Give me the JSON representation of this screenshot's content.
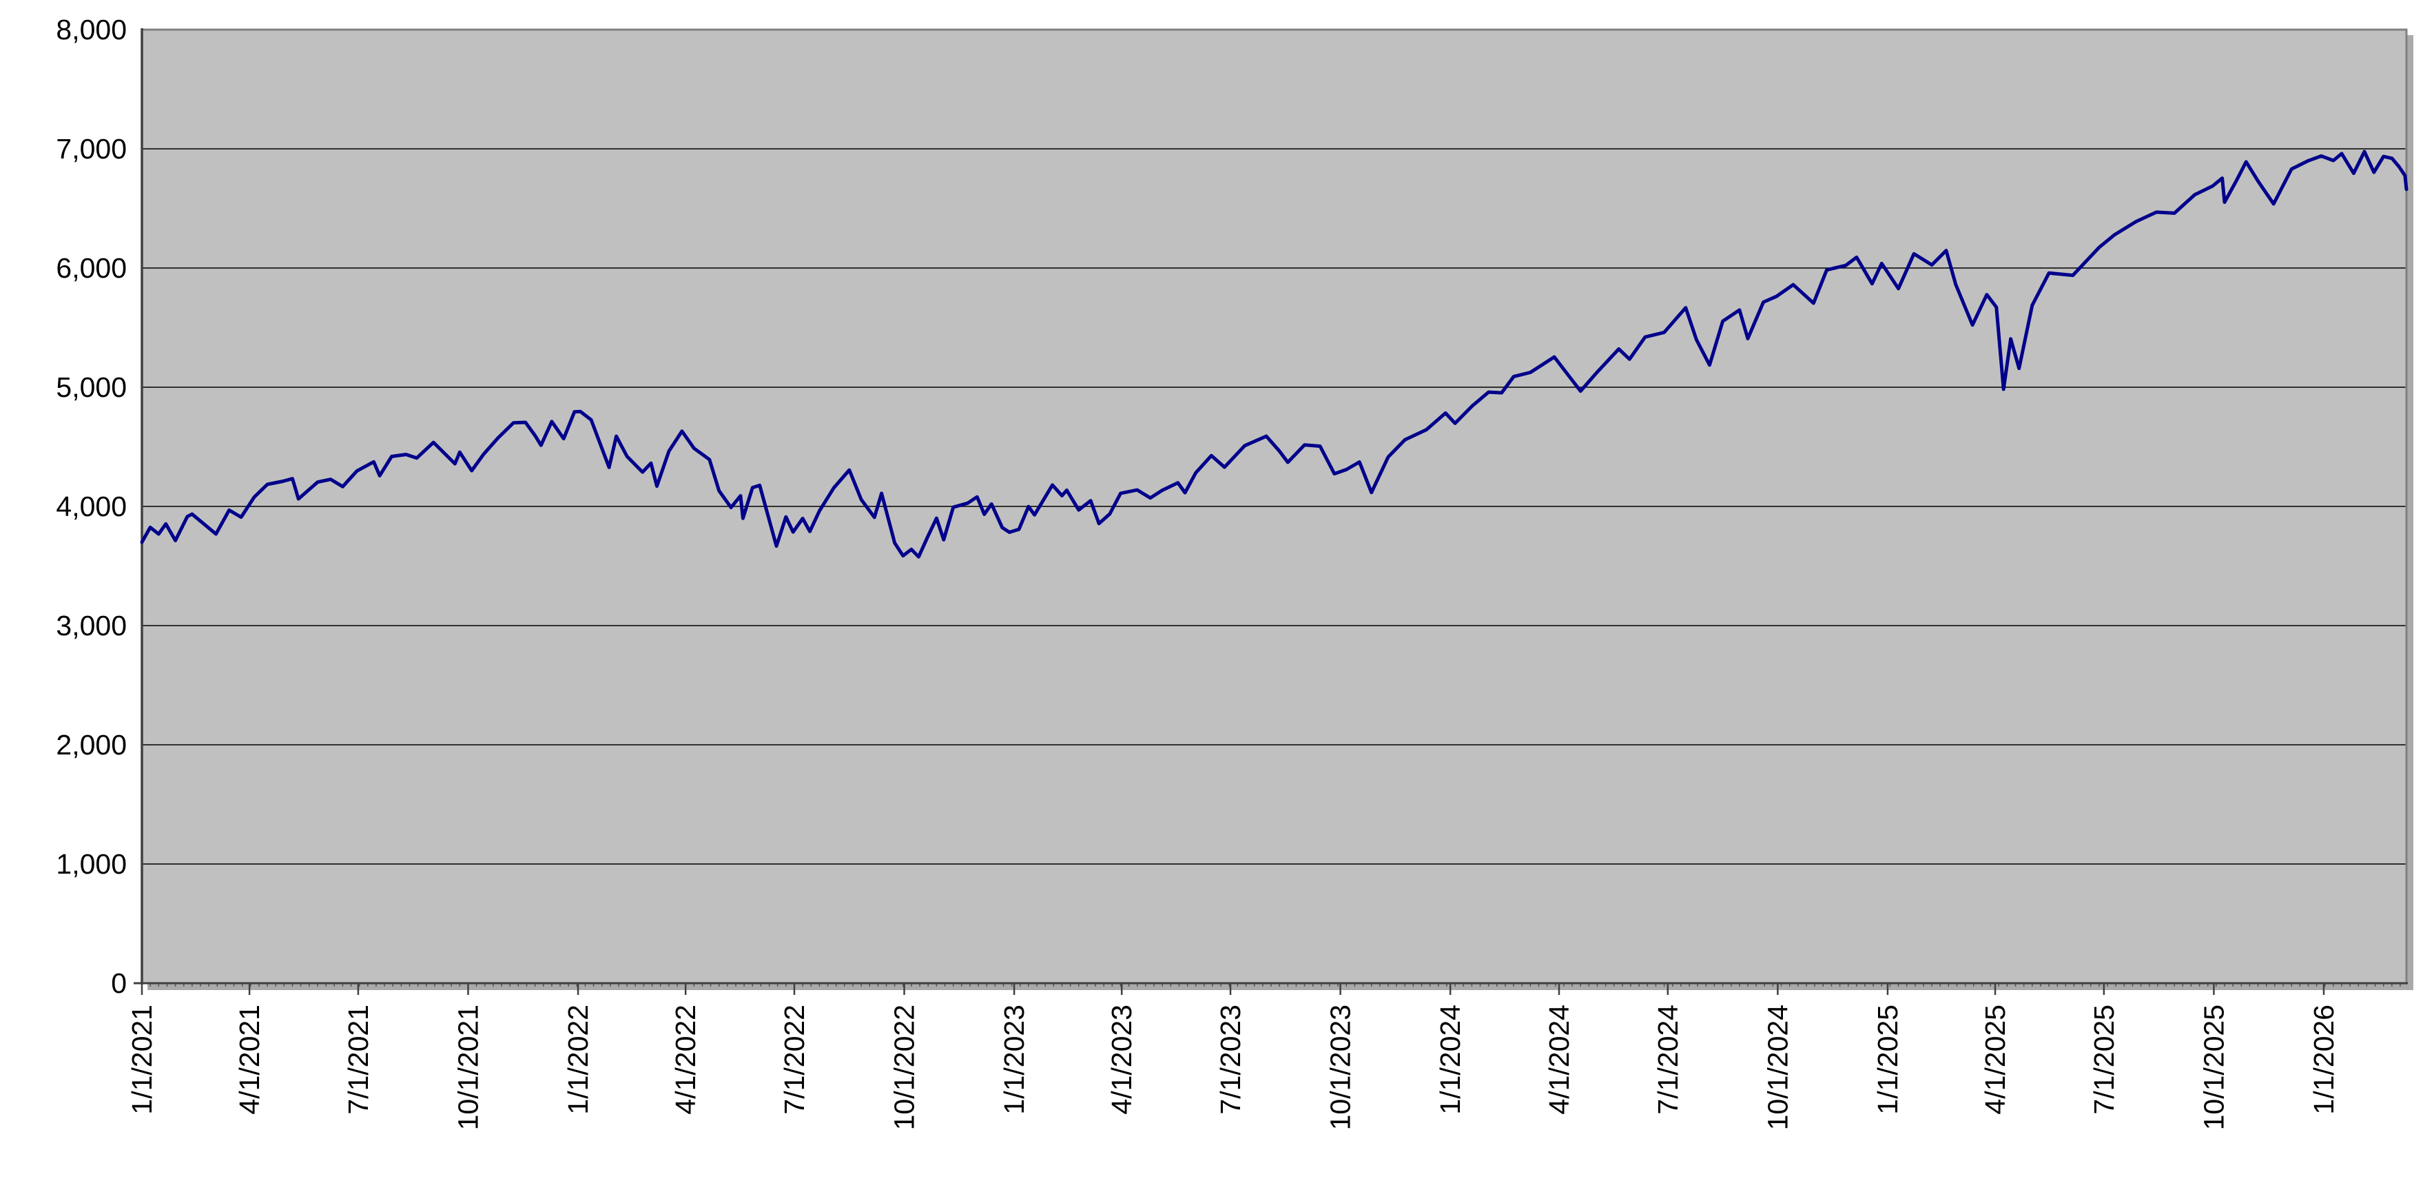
{
  "chart_data": {
    "type": "line",
    "title": "",
    "xlabel": "",
    "ylabel": "",
    "legend": false,
    "grid": true,
    "ylim": [
      0,
      8000
    ],
    "y_ticks": [
      0,
      1000,
      2000,
      3000,
      4000,
      5000,
      6000,
      7000,
      8000
    ],
    "y_tick_labels": [
      "0",
      "1,000",
      "2,000",
      "3,000",
      "4,000",
      "5,000",
      "6,000",
      "7,000",
      "8,000"
    ],
    "x_tick_labels": [
      "1/1/2021",
      "4/1/2021",
      "7/1/2021",
      "10/1/2021",
      "1/1/2022",
      "4/1/2022",
      "7/1/2022",
      "10/1/2022",
      "1/1/2023",
      "4/1/2023",
      "7/1/2023",
      "10/1/2023",
      "1/1/2024",
      "4/1/2024",
      "7/1/2024",
      "10/1/2024",
      "1/1/2025",
      "4/1/2025",
      "7/1/2025",
      "10/1/2025",
      "1/1/2026"
    ],
    "x_range": [
      "1/1/2021",
      "3/13/2026"
    ],
    "points": [
      [
        "1/1/2021",
        3700
      ],
      [
        "1/8/2021",
        3824
      ],
      [
        "1/15/2021",
        3768
      ],
      [
        "1/21/2021",
        3853
      ],
      [
        "1/29/2021",
        3714
      ],
      [
        "2/8/2021",
        3915
      ],
      [
        "2/12/2021",
        3935
      ],
      [
        "2/19/2021",
        3877
      ],
      [
        "3/4/2021",
        3768
      ],
      [
        "3/15/2021",
        3969
      ],
      [
        "3/25/2021",
        3910
      ],
      [
        "4/5/2021",
        4078
      ],
      [
        "4/16/2021",
        4185
      ],
      [
        "4/29/2021",
        4211
      ],
      [
        "5/7/2021",
        4233
      ],
      [
        "5/12/2021",
        4063
      ],
      [
        "5/28/2021",
        4204
      ],
      [
        "6/8/2021",
        4227
      ],
      [
        "6/18/2021",
        4166
      ],
      [
        "6/30/2021",
        4298
      ],
      [
        "7/14/2021",
        4374
      ],
      [
        "7/19/2021",
        4258
      ],
      [
        "7/29/2021",
        4419
      ],
      [
        "8/10/2021",
        4436
      ],
      [
        "8/19/2021",
        4406
      ],
      [
        "9/2/2021",
        4537
      ],
      [
        "9/20/2021",
        4358
      ],
      [
        "9/24/2021",
        4455
      ],
      [
        "10/4/2021",
        4300
      ],
      [
        "10/14/2021",
        4438
      ],
      [
        "10/26/2021",
        4574
      ],
      [
        "11/8/2021",
        4702
      ],
      [
        "11/18/2021",
        4705
      ],
      [
        "11/26/2021",
        4595
      ],
      [
        "12/1/2021",
        4513
      ],
      [
        "12/10/2021",
        4712
      ],
      [
        "12/20/2021",
        4568
      ],
      [
        "12/29/2021",
        4793
      ],
      [
        "1/3/2022",
        4796
      ],
      [
        "1/12/2022",
        4726
      ],
      [
        "1/27/2022",
        4327
      ],
      [
        "2/2/2022",
        4589
      ],
      [
        "2/11/2022",
        4419
      ],
      [
        "2/24/2022",
        4288
      ],
      [
        "3/3/2022",
        4363
      ],
      [
        "3/8/2022",
        4170
      ],
      [
        "3/18/2022",
        4463
      ],
      [
        "3/29/2022",
        4631
      ],
      [
        "4/8/2022",
        4488
      ],
      [
        "4/21/2022",
        4393
      ],
      [
        "4/29/2022",
        4131
      ],
      [
        "5/9/2022",
        3991
      ],
      [
        "5/17/2022",
        4089
      ],
      [
        "5/19/2022",
        3900
      ],
      [
        "5/27/2022",
        4158
      ],
      [
        "6/2/2022",
        4177
      ],
      [
        "6/16/2022",
        3667
      ],
      [
        "6/24/2022",
        3912
      ],
      [
        "6/30/2022",
        3785
      ],
      [
        "7/8/2022",
        3899
      ],
      [
        "7/14/2022",
        3790
      ],
      [
        "7/22/2022",
        3962
      ],
      [
        "8/3/2022",
        4155
      ],
      [
        "8/16/2022",
        4305
      ],
      [
        "8/26/2022",
        4058
      ],
      [
        "9/6/2022",
        3908
      ],
      [
        "9/12/2022",
        4110
      ],
      [
        "9/23/2022",
        3693
      ],
      [
        "9/30/2022",
        3586
      ],
      [
        "10/7/2022",
        3640
      ],
      [
        "10/13/2022",
        3577
      ],
      [
        "10/21/2022",
        3753
      ],
      [
        "10/28/2022",
        3901
      ],
      [
        "11/3/2022",
        3720
      ],
      [
        "11/11/2022",
        3993
      ],
      [
        "11/23/2022",
        4027
      ],
      [
        "12/1/2022",
        4080
      ],
      [
        "12/7/2022",
        3934
      ],
      [
        "12/13/2022",
        4020
      ],
      [
        "12/22/2022",
        3822
      ],
      [
        "12/28/2022",
        3783
      ],
      [
        "1/5/2023",
        3808
      ],
      [
        "1/13/2023",
        3999
      ],
      [
        "1/18/2023",
        3929
      ],
      [
        "2/2/2023",
        4180
      ],
      [
        "2/10/2023",
        4090
      ],
      [
        "2/14/2023",
        4136
      ],
      [
        "2/24/2023",
        3970
      ],
      [
        "3/6/2023",
        4048
      ],
      [
        "3/13/2023",
        3856
      ],
      [
        "3/22/2023",
        3937
      ],
      [
        "3/31/2023",
        4109
      ],
      [
        "4/14/2023",
        4138
      ],
      [
        "4/25/2023",
        4071
      ],
      [
        "5/5/2023",
        4136
      ],
      [
        "5/18/2023",
        4198
      ],
      [
        "5/24/2023",
        4115
      ],
      [
        "6/2/2023",
        4282
      ],
      [
        "6/15/2023",
        4426
      ],
      [
        "6/26/2023",
        4329
      ],
      [
        "7/13/2023",
        4510
      ],
      [
        "7/31/2023",
        4589
      ],
      [
        "8/11/2023",
        4464
      ],
      [
        "8/18/2023",
        4370
      ],
      [
        "9/1/2023",
        4516
      ],
      [
        "9/14/2023",
        4505
      ],
      [
        "9/26/2023",
        4274
      ],
      [
        "10/6/2023",
        4309
      ],
      [
        "10/17/2023",
        4373
      ],
      [
        "10/27/2023",
        4117
      ],
      [
        "11/10/2023",
        4415
      ],
      [
        "11/24/2023",
        4559
      ],
      [
        "12/12/2023",
        4644
      ],
      [
        "12/28/2023",
        4783
      ],
      [
        "1/5/2024",
        4697
      ],
      [
        "1/19/2024",
        4840
      ],
      [
        "2/2/2024",
        4959
      ],
      [
        "2/13/2024",
        4953
      ],
      [
        "2/23/2024",
        5089
      ],
      [
        "3/8/2024",
        5124
      ],
      [
        "3/28/2024",
        5254
      ],
      [
        "4/19/2024",
        4967
      ],
      [
        "5/3/2024",
        5128
      ],
      [
        "5/21/2024",
        5321
      ],
      [
        "5/30/2024",
        5235
      ],
      [
        "6/12/2024",
        5421
      ],
      [
        "6/28/2024",
        5460
      ],
      [
        "7/16/2024",
        5667
      ],
      [
        "7/25/2024",
        5399
      ],
      [
        "8/5/2024",
        5186
      ],
      [
        "8/16/2024",
        5554
      ],
      [
        "8/30/2024",
        5648
      ],
      [
        "9/6/2024",
        5408
      ],
      [
        "9/19/2024",
        5714
      ],
      [
        "9/30/2024",
        5762
      ],
      [
        "10/14/2024",
        5860
      ],
      [
        "10/31/2024",
        5705
      ],
      [
        "11/11/2024",
        5984
      ],
      [
        "11/27/2024",
        6022
      ],
      [
        "12/6/2024",
        6090
      ],
      [
        "12/19/2024",
        5868
      ],
      [
        "12/27/2024",
        6038
      ],
      [
        "1/10/2025",
        5827
      ],
      [
        "1/23/2025",
        6119
      ],
      [
        "2/7/2025",
        6026
      ],
      [
        "2/19/2025",
        6147
      ],
      [
        "2/27/2025",
        5862
      ],
      [
        "3/13/2025",
        5522
      ],
      [
        "3/25/2025",
        5777
      ],
      [
        "4/2/2025",
        5671
      ],
      [
        "4/8/2025",
        4983
      ],
      [
        "4/14/2025",
        5406
      ],
      [
        "4/21/2025",
        5158
      ],
      [
        "5/2/2025",
        5687
      ],
      [
        "5/16/2025",
        5958
      ],
      [
        "6/5/2025",
        5939
      ],
      [
        "6/27/2025",
        6173
      ],
      [
        "7/10/2025",
        6280
      ],
      [
        "7/28/2025",
        6390
      ],
      [
        "8/14/2025",
        6469
      ],
      [
        "8/29/2025",
        6460
      ],
      [
        "9/15/2025",
        6615
      ],
      [
        "9/30/2025",
        6688
      ],
      [
        "10/8/2025",
        6754
      ],
      [
        "10/10/2025",
        6552
      ],
      [
        "10/20/2025",
        6735
      ],
      [
        "10/28/2025",
        6891
      ],
      [
        "11/7/2025",
        6729
      ],
      [
        "11/20/2025",
        6538
      ],
      [
        "12/5/2025",
        6830
      ],
      [
        "12/19/2025",
        6900
      ],
      [
        "12/30/2025",
        6940
      ],
      [
        "1/9/2026",
        6902
      ],
      [
        "1/16/2026",
        6960
      ],
      [
        "1/26/2026",
        6795
      ],
      [
        "2/4/2026",
        6977
      ],
      [
        "2/12/2026",
        6803
      ],
      [
        "2/20/2026",
        6936
      ],
      [
        "2/27/2026",
        6920
      ],
      [
        "3/5/2026",
        6850
      ],
      [
        "3/10/2026",
        6775
      ],
      [
        "3/13/2026",
        6660
      ]
    ],
    "colors": {
      "line": "#00008B",
      "plot_background": "#C0C0C0",
      "gridline": "#000000",
      "border": "#808080",
      "axis": "#404040",
      "tick": "#404040",
      "label": "#000000",
      "page_background": "#FFFFFF"
    }
  }
}
